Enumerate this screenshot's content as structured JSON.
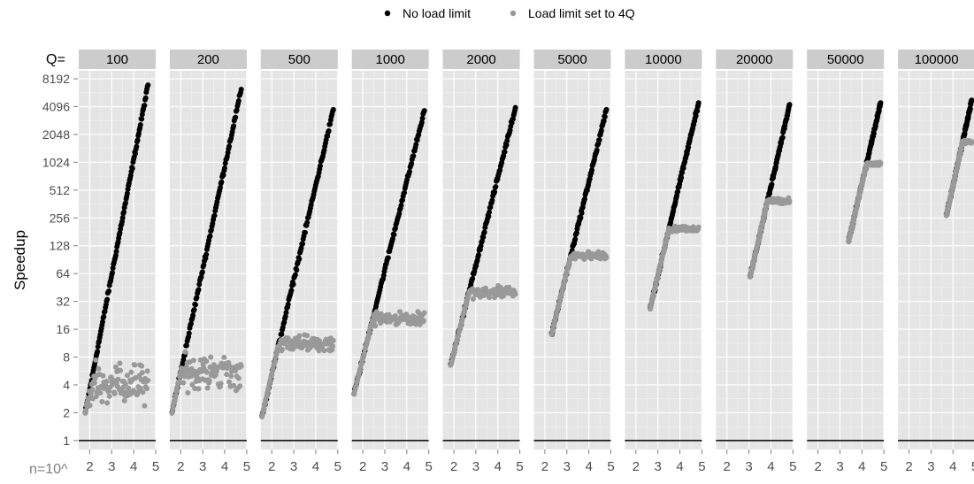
{
  "chart_data": {
    "type": "scatter",
    "title": "",
    "ylabel": "Speedup",
    "q_label": "Q=",
    "n_label": "n=10^",
    "y_scale": "log2",
    "ylim": [
      0.8,
      10000
    ],
    "xlim": [
      1.5,
      5.0
    ],
    "x_ticks": [
      "2",
      "3",
      "4",
      "5"
    ],
    "y_ticks": [
      "1",
      "2",
      "4",
      "8",
      "16",
      "32",
      "64",
      "128",
      "256",
      "512",
      "1024",
      "2048",
      "4096",
      "8192"
    ],
    "reference_line_y": 1,
    "legend": {
      "position": "top",
      "entries": [
        "No load limit",
        "Load limit set to 4Q"
      ]
    },
    "series_colors": {
      "No load limit": "#000000",
      "Load limit set to 4Q": "#999999"
    },
    "panel_background": "#e5e5e5",
    "strip_background": "#cccccc",
    "panels": [
      {
        "Q": "100",
        "x_min": 1.8,
        "x_max": 4.65,
        "nolimit_end": 7000,
        "limited": 4,
        "gray_start": 2.0,
        "gray_x0": 1.8,
        "noise": 2.0
      },
      {
        "Q": "200",
        "x_min": 1.6,
        "x_max": 4.75,
        "nolimit_end": 6300,
        "limited": 5.5,
        "gray_start": 2.0,
        "gray_x0": 1.6,
        "noise": 1.8
      },
      {
        "Q": "500",
        "x_min": 1.55,
        "x_max": 4.8,
        "nolimit_end": 3800,
        "limited": 11,
        "gray_start": 1.8,
        "gray_x0": 1.55,
        "noise": 1.35
      },
      {
        "Q": "1000",
        "x_min": 1.6,
        "x_max": 4.8,
        "nolimit_end": 3700,
        "limited": 21,
        "gray_start": 3.2,
        "gray_x0": 1.6,
        "noise": 1.25
      },
      {
        "Q": "2000",
        "x_min": 1.85,
        "x_max": 4.8,
        "nolimit_end": 4000,
        "limited": 40,
        "gray_start": 6.5,
        "gray_x0": 1.85,
        "noise": 1.2
      },
      {
        "Q": "5000",
        "x_min": 2.3,
        "x_max": 4.8,
        "nolimit_end": 3800,
        "limited": 100,
        "gray_start": 14,
        "gray_x0": 2.3,
        "noise": 1.12
      },
      {
        "Q": "10000",
        "x_min": 2.65,
        "x_max": 4.85,
        "nolimit_end": 4500,
        "limited": 195,
        "gray_start": 27,
        "gray_x0": 2.65,
        "noise": 1.08
      },
      {
        "Q": "20000",
        "x_min": 3.05,
        "x_max": 4.85,
        "nolimit_end": 4300,
        "limited": 390,
        "gray_start": 58,
        "gray_x0": 3.05,
        "noise": 1.06
      },
      {
        "Q": "50000",
        "x_min": 3.4,
        "x_max": 4.85,
        "nolimit_end": 4500,
        "limited": 980,
        "gray_start": 145,
        "gray_x0": 3.4,
        "noise": 1.05
      },
      {
        "Q": "100000",
        "x_min": 3.7,
        "x_max": 4.85,
        "nolimit_end": 4800,
        "limited": 1700,
        "gray_start": 270,
        "gray_x0": 3.7,
        "noise": 1.05
      }
    ]
  }
}
